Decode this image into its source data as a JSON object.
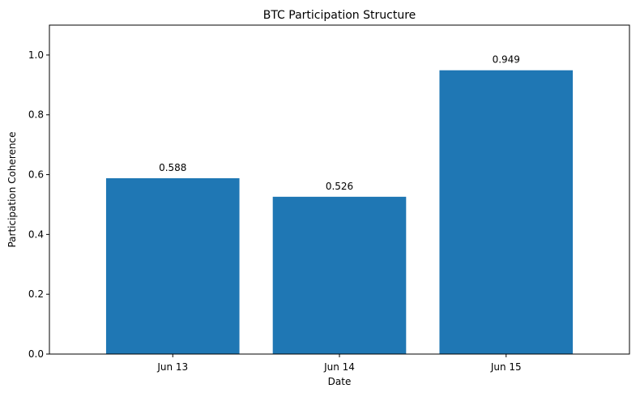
{
  "chart_data": {
    "type": "bar",
    "title": "BTC Participation Structure",
    "xlabel": "Date",
    "ylabel": "Participation Coherence",
    "categories": [
      "Jun 13",
      "Jun 14",
      "Jun 15"
    ],
    "values": [
      0.588,
      0.526,
      0.949
    ],
    "data_labels": [
      "0.588",
      "0.526",
      "0.949"
    ],
    "ylim": [
      0,
      1.1
    ],
    "yticks": [
      0.0,
      0.2,
      0.4,
      0.6,
      0.8,
      1.0
    ],
    "ytick_labels": [
      "0.0",
      "0.2",
      "0.4",
      "0.6",
      "0.8",
      "1.0"
    ],
    "grid": false,
    "bar_color": "#1f77b4"
  }
}
